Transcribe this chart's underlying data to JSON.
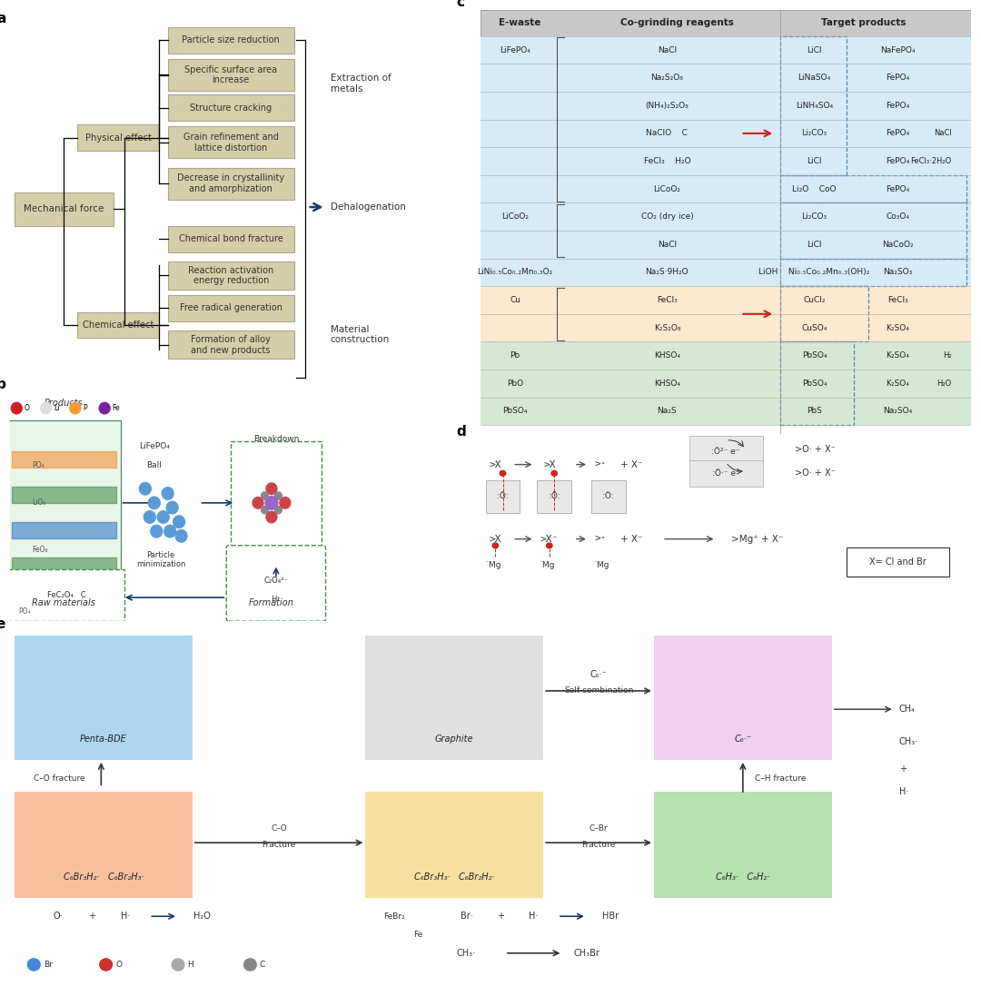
{
  "fig_width": 10.8,
  "fig_height": 10.86,
  "bg_color": "#ffffff",
  "box_fill": "#d4cfa8",
  "box_edge": "#999977",
  "panel_a": {
    "label": "a",
    "mechanical_force": "Mechanical force",
    "physical_effect": "Physical effect",
    "chemical_effect": "Chemical effect",
    "physical_boxes": [
      "Particle size reduction",
      "Specific surface area\nincrease",
      "Structure cracking",
      "Grain refinement and\nlattice distortion",
      "Decrease in crystallinity\nand amorphization"
    ],
    "chemical_boxes": [
      "Chemical bond fracture",
      "Reaction activation\nenergy reduction",
      "Free radical generation",
      "Formation of alloy\nand new products"
    ],
    "outcomes": [
      "Extraction of\nmetals",
      "Dehalogenation",
      "Material\nconstruction"
    ]
  },
  "panel_c": {
    "label": "c",
    "header_bg": "#c8c8c8",
    "blue_bg": "#d6eaf8",
    "orange_bg": "#fde8d0",
    "green_bg": "#d5e8d4",
    "headers": [
      "E-waste",
      "Co-grinding reagents",
      "Target products"
    ],
    "rows": [
      {
        "ewaste": "LiFePO₄",
        "reagent": "NaCl",
        "products": "LiCl    NaFePO₄",
        "bg": "blue"
      },
      {
        "ewaste": "",
        "reagent": "Na₂S₂O₈",
        "products": "LiNaSO₄    FePO₄",
        "bg": "blue"
      },
      {
        "ewaste": "",
        "reagent": "(NH₄)₂S₂O₈",
        "products": "LiNH₄SO₄    FePO₄",
        "bg": "blue"
      },
      {
        "ewaste": "",
        "reagent": "NaClO    C",
        "products": "Li₂CO₃    FePO₄    NaCl",
        "bg": "blue"
      },
      {
        "ewaste": "",
        "reagent": "FeCl₃    H₂O",
        "products": "LiCl    FePO₄    FeCl₃·2H₂O",
        "bg": "blue"
      },
      {
        "ewaste": "",
        "reagent": "LiCoO₂",
        "products": "Li₂O    CoO    FePO₄",
        "bg": "blue"
      },
      {
        "ewaste": "LiCoO₂",
        "reagent": "CO₂ (dry ice)",
        "products": "Li₂CO₃    Co₃O₄",
        "bg": "blue"
      },
      {
        "ewaste": "",
        "reagent": "NaCl",
        "products": "LiCl    NaCoO₂",
        "bg": "blue"
      },
      {
        "ewaste": "LiNi₀.₅Co₀.₂Mn₀.₃O₂    Na₂S·9H₂O",
        "reagent": "",
        "products": "LiOH    Ni₀.₅Co₀.₂Mn₀.₃(OH)₂    Na₂SO₃",
        "bg": "blue"
      },
      {
        "ewaste": "Cu",
        "reagent": "FeCl₃",
        "products": "CuCl₂    FeCl₃",
        "bg": "orange"
      },
      {
        "ewaste": "",
        "reagent": "K₂S₂O₈",
        "products": "CuSO₄    K₂SO₄",
        "bg": "orange"
      },
      {
        "ewaste": "Pb",
        "reagent": "KHSO₄",
        "products": "PbSO₄    K₂SO₄    H₂",
        "bg": "green"
      },
      {
        "ewaste": "PbO",
        "reagent": "KHSO₄",
        "products": "PbSO₄    K₂SO₄    H₂O",
        "bg": "green"
      },
      {
        "ewaste": "PbSO₄",
        "reagent": "Na₂S",
        "products": "PbS    Na₂SO₄",
        "bg": "green"
      }
    ]
  }
}
